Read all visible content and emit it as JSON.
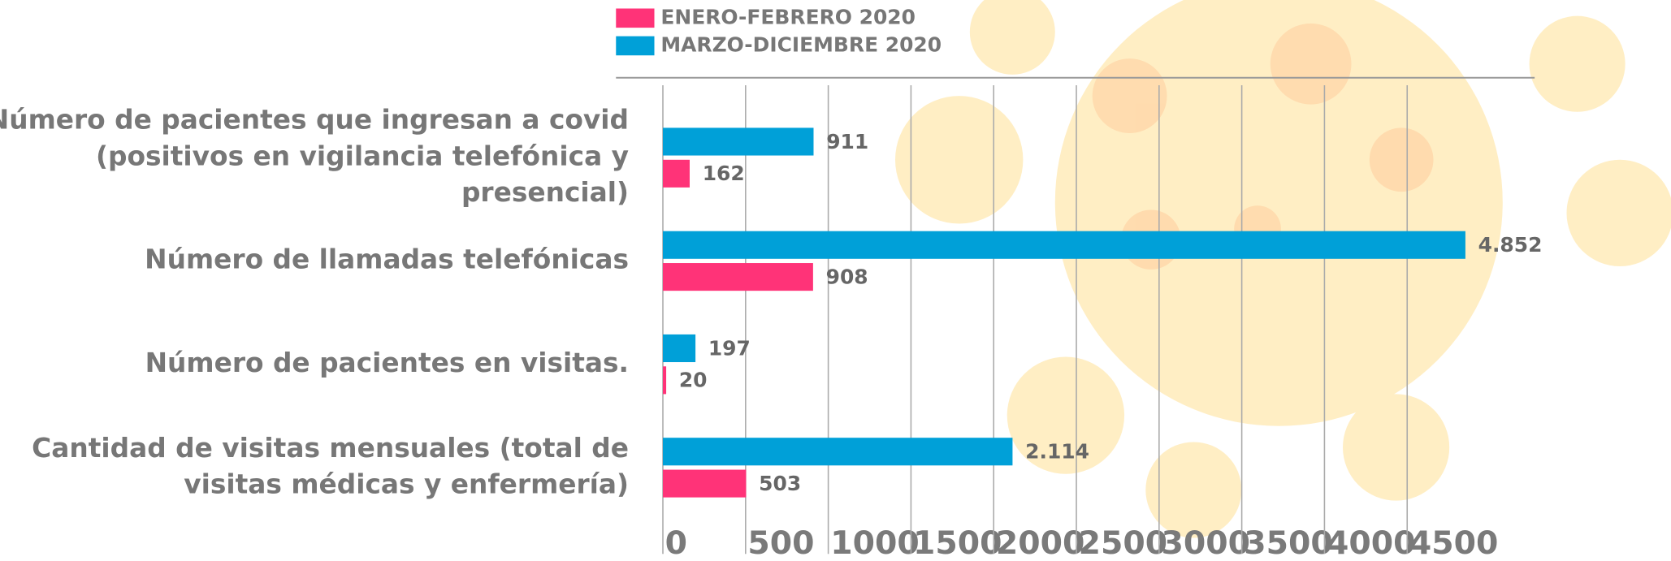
{
  "chart_data": {
    "type": "hbar",
    "categories": [
      "Número de pacientes que  ingresan a covid\n(positivos en vigilancia telefónica y presencial)",
      "Número de llamadas telefónicas",
      "Número de pacientes en visitas.",
      "Cantidad de visitas mensuales (total de\nvisitas médicas y enfermería)"
    ],
    "series": [
      {
        "name": "ENERO-FEBRERO 2020",
        "color": "#ff3378",
        "values": [
          162,
          908,
          20,
          503
        ]
      },
      {
        "name": "MARZO-DICIEMBRE 2020",
        "color": "#00a0d8",
        "values": [
          911,
          4852,
          197,
          2114
        ],
        "value_labels": [
          "911",
          "4.852",
          "197",
          "2.114"
        ]
      }
    ],
    "xlim": [
      0,
      5000
    ],
    "xticks": [
      0,
      500,
      1000,
      1500,
      2000,
      2500,
      3000,
      3500,
      4000,
      4500
    ],
    "grid": true
  }
}
